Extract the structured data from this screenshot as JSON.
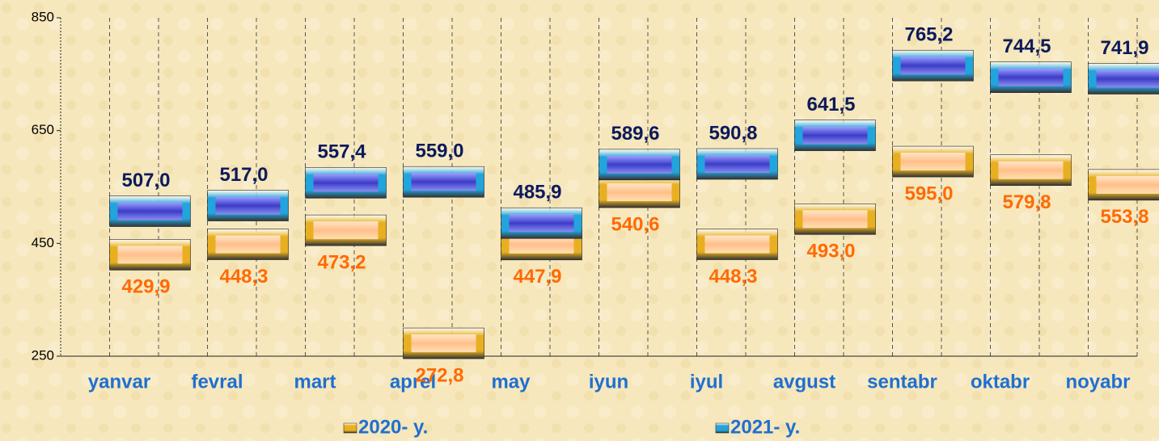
{
  "chart_data": {
    "type": "line",
    "categories": [
      "yanvar",
      "fevral",
      "mart",
      "aprel",
      "may",
      "iyun",
      "iyul",
      "avgust",
      "sentabr",
      "oktabr",
      "noyabr"
    ],
    "series": [
      {
        "name": "2020- y.",
        "color": "#e8b020",
        "label_color": "#ff6a00",
        "values": [
          429.9,
          448.3,
          473.2,
          272.8,
          447.9,
          540.6,
          448.3,
          493.0,
          595.0,
          579.8,
          553.8
        ],
        "value_labels": [
          "429,9",
          "448,3",
          "473,2",
          "272,8",
          "447,9",
          "540,6",
          "448,3",
          "493,0",
          "595,0",
          "579,8",
          "553,8"
        ]
      },
      {
        "name": "2021- y.",
        "color": "#22a4dc",
        "label_color": "#0c1a5c",
        "values": [
          507.0,
          517.0,
          557.4,
          559.0,
          485.9,
          589.6,
          590.8,
          641.5,
          765.2,
          744.5,
          741.9
        ],
        "value_labels": [
          "507,0",
          "517,0",
          "557,4",
          "559,0",
          "485,9",
          "589,6",
          "590,8",
          "641,5",
          "765,2",
          "744,5",
          "741,9"
        ]
      }
    ],
    "ylim": [
      250,
      850
    ],
    "yticks": [
      250,
      450,
      650,
      850
    ],
    "grid": true,
    "legend": "bottom"
  }
}
